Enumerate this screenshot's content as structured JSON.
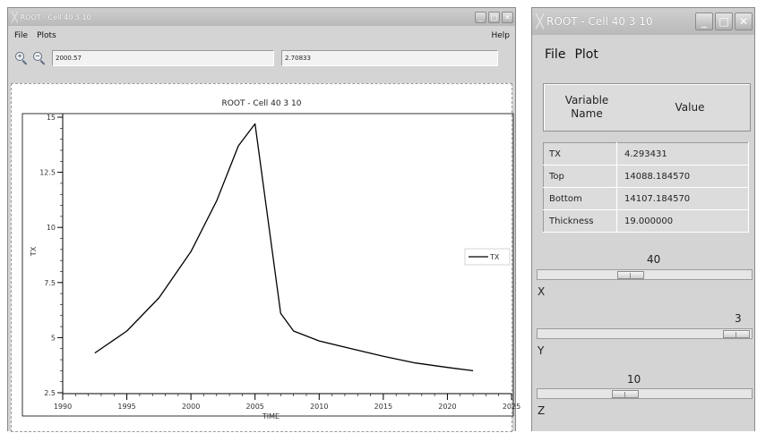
{
  "plot_window": {
    "title": "ROOT - Cell 40 3 10",
    "menu": {
      "file": "File",
      "plots": "Plots",
      "help": "Help"
    },
    "coord_x": "2000.57",
    "coord_y": "2.70833",
    "legend": "TX"
  },
  "info_window": {
    "title": "ROOT - Cell 40 3 10",
    "menu": {
      "file": "File",
      "plot": "Plot"
    },
    "header": {
      "name": "Variable\nName",
      "value": "Value"
    },
    "rows": [
      {
        "name": "TX",
        "value": "4.293431"
      },
      {
        "name": "Top",
        "value": "14088.184570"
      },
      {
        "name": "Bottom",
        "value": "14107.184570"
      },
      {
        "name": "Thickness",
        "value": "19.000000"
      }
    ],
    "sliders": [
      {
        "label": "X",
        "value": "40",
        "level": 0.43
      },
      {
        "label": "Y",
        "value": "3",
        "level": 1.0
      },
      {
        "label": "Z",
        "value": "10",
        "level": 0.4
      }
    ]
  },
  "colors": {
    "title_bar": "#bcbcbc",
    "window_bg": "#d4d4d4",
    "plot_bg": "#ffffff",
    "line": "#000000"
  },
  "chart_data": {
    "type": "line",
    "title": "ROOT - Cell 40 3 10",
    "xlabel": "TIME",
    "ylabel": "TX",
    "xlim": [
      1990,
      2025
    ],
    "ylim": [
      2.5,
      15
    ],
    "xticks": [
      "1990",
      "1995",
      "2000",
      "2005",
      "2010",
      "2015",
      "2020",
      "2025"
    ],
    "yticks": [
      "2.5",
      "5",
      "7.5",
      "10",
      "12.5",
      "15"
    ],
    "legend_position": "right",
    "grid": false,
    "series": [
      {
        "name": "TX",
        "x": [
          1992.5,
          1995,
          1997.5,
          2000,
          2002,
          2003.7,
          2005,
          2007,
          2008,
          2010,
          2012.5,
          2015,
          2017.5,
          2020,
          2022
        ],
        "y": [
          4.3,
          5.3,
          6.8,
          8.9,
          11.2,
          13.7,
          14.7,
          6.1,
          5.3,
          4.85,
          4.5,
          4.15,
          3.85,
          3.65,
          3.5
        ]
      }
    ]
  }
}
